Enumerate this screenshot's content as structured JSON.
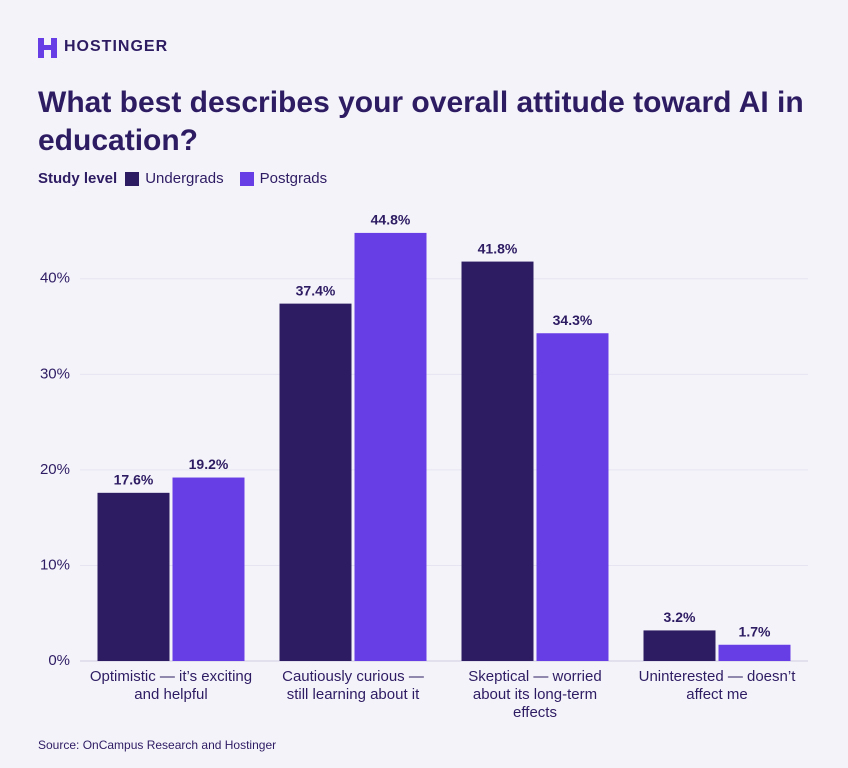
{
  "chart_data": {
    "type": "bar",
    "brand": "HOSTINGER",
    "title": "What best describes your overall attitude toward AI in education?",
    "legend_title": "Study level",
    "categories": [
      "Optimistic — it’s exciting and helpful",
      "Cautiously curious — still learning about it",
      "Skeptical — worried about its long-term effects",
      "Uninterested — doesn’t affect me"
    ],
    "series": [
      {
        "name": "Undergrads",
        "color": "#2e1c63",
        "values": [
          17.6,
          37.4,
          41.8,
          3.2
        ],
        "value_labels": [
          "17.6%",
          "37.4%",
          "41.8%",
          "3.2%"
        ]
      },
      {
        "name": "Postgrads",
        "color": "#673de6",
        "values": [
          19.2,
          44.8,
          34.3,
          1.7
        ],
        "value_labels": [
          "19.2%",
          "44.8%",
          "34.3%",
          "1.7%"
        ]
      }
    ],
    "ylim": [
      0,
      45
    ],
    "yticks": [
      {
        "value": 0,
        "label": "0%"
      },
      {
        "value": 10,
        "label": "10%"
      },
      {
        "value": 20,
        "label": "20%"
      },
      {
        "value": 30,
        "label": "30%"
      },
      {
        "value": 40,
        "label": "40%"
      }
    ],
    "grid": true,
    "source": "Source: OnCampus Research and Hostinger"
  }
}
